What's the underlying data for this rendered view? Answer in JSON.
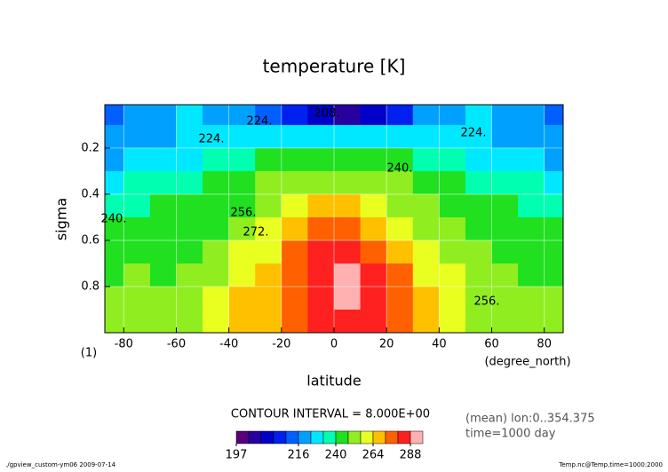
{
  "chart_data": {
    "type": "contour",
    "title": "temperature [K]",
    "x_label": "latitude",
    "x_unit": "(degree_north)",
    "y_label": "sigma",
    "y_unit": "(1)",
    "x": [
      -85,
      -75,
      -65,
      -55,
      -45,
      -35,
      -25,
      -15,
      -5,
      5,
      15,
      25,
      35,
      45,
      55,
      65,
      75,
      85
    ],
    "y": [
      0.05,
      0.15,
      0.25,
      0.35,
      0.45,
      0.55,
      0.65,
      0.75,
      0.85,
      0.95
    ],
    "z": [
      [
        214,
        216,
        220,
        224,
        222,
        218,
        214,
        210,
        204,
        202,
        206,
        210,
        216,
        220,
        224,
        222,
        216,
        214
      ],
      [
        216,
        218,
        222,
        226,
        228,
        230,
        228,
        226,
        224,
        224,
        226,
        228,
        230,
        228,
        226,
        222,
        218,
        216
      ],
      [
        222,
        224,
        226,
        230,
        234,
        236,
        240,
        242,
        244,
        244,
        242,
        240,
        236,
        232,
        228,
        226,
        224,
        222
      ],
      [
        230,
        232,
        234,
        236,
        240,
        244,
        248,
        252,
        254,
        254,
        252,
        248,
        244,
        240,
        236,
        234,
        232,
        230
      ],
      [
        236,
        238,
        240,
        240,
        242,
        246,
        252,
        260,
        266,
        266,
        262,
        254,
        248,
        244,
        242,
        240,
        238,
        236
      ],
      [
        240,
        242,
        244,
        244,
        246,
        250,
        256,
        266,
        272,
        274,
        270,
        262,
        254,
        248,
        246,
        244,
        242,
        240
      ],
      [
        244,
        246,
        246,
        246,
        250,
        256,
        262,
        272,
        280,
        282,
        278,
        268,
        258,
        252,
        248,
        246,
        244,
        244
      ],
      [
        246,
        248,
        246,
        248,
        254,
        262,
        268,
        276,
        286,
        290,
        284,
        272,
        262,
        256,
        250,
        248,
        246,
        246
      ],
      [
        248,
        250,
        248,
        250,
        258,
        264,
        270,
        278,
        286,
        288,
        284,
        274,
        264,
        258,
        252,
        250,
        248,
        248
      ],
      [
        248,
        250,
        250,
        252,
        258,
        264,
        270,
        276,
        280,
        282,
        280,
        272,
        264,
        258,
        254,
        250,
        250,
        250
      ]
    ],
    "xlim": [
      -87.2,
      87.2
    ],
    "ylim": [
      1.0,
      0.012
    ],
    "xticks": [
      -80,
      -60,
      -40,
      -20,
      0,
      20,
      40,
      60,
      80
    ],
    "yticks": [
      0.2,
      0.4,
      0.6,
      0.8
    ],
    "grid": true,
    "levels": [
      197,
      200,
      204,
      208,
      212,
      216,
      224,
      232,
      240,
      248,
      256,
      264,
      272,
      280,
      288,
      296
    ],
    "colors": [
      "#5a007a",
      "#2800a0",
      "#0000c8",
      "#0020f0",
      "#0060ff",
      "#00a0ff",
      "#00e8ff",
      "#00ffb0",
      "#20e020",
      "#90ee20",
      "#e8ff20",
      "#ffc000",
      "#ff6000",
      "#ff2020",
      "#ffb0b0"
    ],
    "colorbar_ticks": [
      197,
      216,
      240,
      264,
      288
    ],
    "contour_labels": [
      "208.",
      "224.",
      "224.",
      "224.",
      "240.",
      "240.",
      "256.",
      "256.",
      "272."
    ],
    "contour_interval": "CONTOUR INTERVAL = 8.000E+00",
    "notes": [
      "(mean) lon:0..354.375",
      "time=1000 day"
    ],
    "footer_left": "./gpview_custom-ym06  2009-07-14",
    "footer_right": "Temp.nc@Temp,time=1000:2000"
  }
}
